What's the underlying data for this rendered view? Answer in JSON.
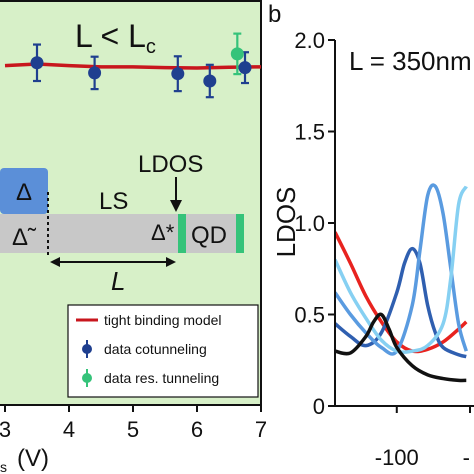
{
  "panels": [
    {
      "chart_data": {
        "type": "scatter",
        "annotation": "L < L",
        "annotation_sub": "c",
        "xlabel_visible": "(V)",
        "xlabel_prefix": "s",
        "x_ticks": [
          "3",
          "4",
          "5",
          "6",
          "7"
        ],
        "xlim": [
          3,
          7
        ],
        "ylim": [
          0,
          1
        ],
        "background_color": "#d7f0c8",
        "series": [
          {
            "name": "tight binding model",
            "kind": "line",
            "color": "#c8161d",
            "x": [
              3.0,
              3.5,
              4.0,
              4.5,
              5.0,
              5.5,
              6.0,
              6.5,
              7.0
            ],
            "y": [
              0.838,
              0.842,
              0.838,
              0.835,
              0.835,
              0.833,
              0.832,
              0.834,
              0.835
            ]
          },
          {
            "name": "data cotunneling",
            "kind": "points",
            "color": "#1f3f8f",
            "x": [
              3.5,
              4.4,
              5.7,
              6.2,
              6.75
            ],
            "y": [
              0.845,
              0.82,
              0.818,
              0.8,
              0.833
            ],
            "err": [
              0.045,
              0.04,
              0.043,
              0.04,
              0.038
            ]
          },
          {
            "name": "data res. tunneling",
            "kind": "points",
            "color": "#35c37a",
            "x": [
              6.63
            ],
            "y": [
              0.867
            ],
            "err": [
              0.05
            ]
          }
        ],
        "legend_position": "bottom-right"
      },
      "schematic": {
        "delta_label": "Δ",
        "delta_tilde_label": "Δ̃",
        "ls_label": "LS",
        "ldos_label": "LDOS",
        "delta_star_label": "Δ*",
        "qd_label": "QD",
        "length_label": "L",
        "block_color": "#5b8fd8",
        "bar_color": "#c8c8c8",
        "edge_color": "#35c37a"
      }
    },
    {
      "panel_label": "b",
      "chart_data": {
        "type": "line",
        "annotation": "L = 350nm",
        "ylabel": "LDOS",
        "y_ticks": [
          "0",
          "0.5",
          "1.0",
          "1.5",
          "2.0"
        ],
        "ylim": [
          0,
          2.0
        ],
        "x_ticks": [
          "-100",
          "-"
        ],
        "xlim": [
          -140,
          -50
        ],
        "series": [
          {
            "color": "#e8231f",
            "x": [
              -140,
              -130,
              -120,
              -110,
              -100,
              -90,
              -80,
              -70,
              -60,
              -55
            ],
            "y": [
              0.95,
              0.78,
              0.6,
              0.46,
              0.35,
              0.3,
              0.31,
              0.35,
              0.42,
              0.46
            ]
          },
          {
            "color": "#2f5fb0",
            "x": [
              -140,
              -130,
              -120,
              -110,
              -100,
              -95,
              -90,
              -85,
              -80,
              -75,
              -70,
              -60,
              -55
            ],
            "y": [
              0.45,
              0.38,
              0.33,
              0.4,
              0.62,
              0.78,
              0.86,
              0.78,
              0.55,
              0.4,
              0.32,
              0.28,
              0.27
            ]
          },
          {
            "color": "#5a9be0",
            "x": [
              -140,
              -130,
              -120,
              -110,
              -100,
              -90,
              -85,
              -80,
              -75,
              -70,
              -65,
              -60,
              -55
            ],
            "y": [
              0.62,
              0.5,
              0.4,
              0.32,
              0.3,
              0.55,
              0.85,
              1.15,
              1.2,
              1.05,
              0.75,
              0.45,
              0.3
            ]
          },
          {
            "color": "#86d0f2",
            "x": [
              -140,
              -130,
              -120,
              -110,
              -100,
              -90,
              -80,
              -70,
              -65,
              -60,
              -55
            ],
            "y": [
              0.8,
              0.62,
              0.48,
              0.36,
              0.3,
              0.3,
              0.33,
              0.45,
              0.7,
              1.1,
              1.2
            ]
          },
          {
            "color": "#111111",
            "x": [
              -140,
              -130,
              -120,
              -115,
              -110,
              -105,
              -100,
              -90,
              -80,
              -70,
              -60,
              -55
            ],
            "y": [
              0.3,
              0.29,
              0.38,
              0.46,
              0.5,
              0.42,
              0.32,
              0.22,
              0.17,
              0.15,
              0.14,
              0.14
            ]
          }
        ]
      }
    }
  ]
}
